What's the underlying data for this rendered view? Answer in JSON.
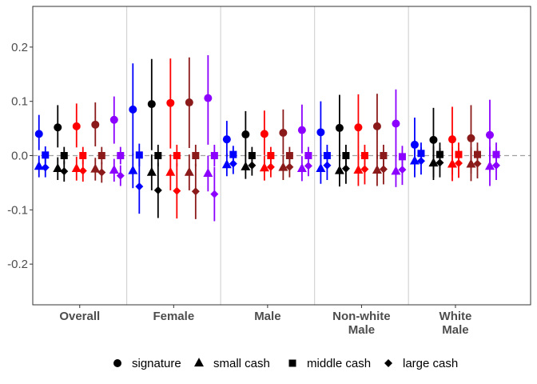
{
  "chart_data": {
    "type": "scatter",
    "subtype": "point-range (estimates with confidence intervals)",
    "title": "",
    "xlabel": "",
    "ylabel": "",
    "ylim": [
      -0.275,
      0.275
    ],
    "yticks": [
      -0.2,
      -0.1,
      0.0,
      0.1,
      0.2
    ],
    "ytick_labels": [
      "-0.2",
      "-0.1",
      "0.0",
      "0.1",
      "0.2"
    ],
    "reference_line": {
      "y": 0,
      "style": "dashed"
    },
    "grid": false,
    "group_separators": true,
    "legend_position": "bottom",
    "groups": [
      {
        "label": "Overall"
      },
      {
        "label": "Female"
      },
      {
        "label": "Male"
      },
      {
        "label": "Non-white\nMale"
      },
      {
        "label": "White\nMale"
      }
    ],
    "colors": [
      "#0000FF",
      "#000000",
      "#FF0000",
      "#8B1A1A",
      "#8B00FF"
    ],
    "treatments": [
      {
        "name": "signature",
        "shape": "circle"
      },
      {
        "name": "small cash",
        "shape": "triangle"
      },
      {
        "name": "middle cash",
        "shape": "square"
      },
      {
        "name": "large cash",
        "shape": "diamond"
      }
    ],
    "series": [
      {
        "group": 0,
        "color": 0,
        "treatment": 0,
        "estimate": 0.04,
        "ci": [
          0.01,
          0.075
        ]
      },
      {
        "group": 0,
        "color": 0,
        "treatment": 1,
        "estimate": -0.02,
        "ci": [
          -0.04,
          0.0
        ]
      },
      {
        "group": 0,
        "color": 0,
        "treatment": 2,
        "estimate": 0.001,
        "ci": [
          -0.015,
          0.017
        ]
      },
      {
        "group": 0,
        "color": 0,
        "treatment": 3,
        "estimate": -0.022,
        "ci": [
          -0.04,
          -0.004
        ]
      },
      {
        "group": 0,
        "color": 1,
        "treatment": 0,
        "estimate": 0.052,
        "ci": [
          0.015,
          0.093
        ]
      },
      {
        "group": 0,
        "color": 1,
        "treatment": 1,
        "estimate": -0.024,
        "ci": [
          -0.045,
          -0.003
        ]
      },
      {
        "group": 0,
        "color": 1,
        "treatment": 2,
        "estimate": 0.0,
        "ci": [
          -0.016,
          0.016
        ]
      },
      {
        "group": 0,
        "color": 1,
        "treatment": 3,
        "estimate": -0.029,
        "ci": [
          -0.048,
          -0.01
        ]
      },
      {
        "group": 0,
        "color": 2,
        "treatment": 0,
        "estimate": 0.054,
        "ci": [
          0.015,
          0.096
        ]
      },
      {
        "group": 0,
        "color": 2,
        "treatment": 1,
        "estimate": -0.024,
        "ci": [
          -0.046,
          -0.002
        ]
      },
      {
        "group": 0,
        "color": 2,
        "treatment": 2,
        "estimate": 0.0,
        "ci": [
          -0.016,
          0.016
        ]
      },
      {
        "group": 0,
        "color": 2,
        "treatment": 3,
        "estimate": -0.028,
        "ci": [
          -0.048,
          -0.008
        ]
      },
      {
        "group": 0,
        "color": 3,
        "treatment": 0,
        "estimate": 0.057,
        "ci": [
          0.017,
          0.098
        ]
      },
      {
        "group": 0,
        "color": 3,
        "treatment": 1,
        "estimate": -0.025,
        "ci": [
          -0.046,
          -0.004
        ]
      },
      {
        "group": 0,
        "color": 3,
        "treatment": 2,
        "estimate": 0.0,
        "ci": [
          -0.016,
          0.016
        ]
      },
      {
        "group": 0,
        "color": 3,
        "treatment": 3,
        "estimate": -0.031,
        "ci": [
          -0.05,
          -0.012
        ]
      },
      {
        "group": 0,
        "color": 4,
        "treatment": 0,
        "estimate": 0.066,
        "ci": [
          0.022,
          0.109
        ]
      },
      {
        "group": 0,
        "color": 4,
        "treatment": 1,
        "estimate": -0.027,
        "ci": [
          -0.048,
          -0.006
        ]
      },
      {
        "group": 0,
        "color": 4,
        "treatment": 2,
        "estimate": 0.0,
        "ci": [
          -0.016,
          0.016
        ]
      },
      {
        "group": 0,
        "color": 4,
        "treatment": 3,
        "estimate": -0.037,
        "ci": [
          -0.056,
          -0.018
        ]
      },
      {
        "group": 1,
        "color": 0,
        "treatment": 0,
        "estimate": 0.085,
        "ci": [
          0.0,
          0.17
        ]
      },
      {
        "group": 1,
        "color": 0,
        "treatment": 1,
        "estimate": -0.028,
        "ci": [
          -0.06,
          0.004
        ]
      },
      {
        "group": 1,
        "color": 0,
        "treatment": 2,
        "estimate": 0.001,
        "ci": [
          -0.02,
          0.022
        ]
      },
      {
        "group": 1,
        "color": 0,
        "treatment": 3,
        "estimate": -0.057,
        "ci": [
          -0.107,
          -0.007
        ]
      },
      {
        "group": 1,
        "color": 1,
        "treatment": 0,
        "estimate": 0.095,
        "ci": [
          0.01,
          0.178
        ]
      },
      {
        "group": 1,
        "color": 1,
        "treatment": 1,
        "estimate": -0.031,
        "ci": [
          -0.064,
          0.002
        ]
      },
      {
        "group": 1,
        "color": 1,
        "treatment": 2,
        "estimate": 0.0,
        "ci": [
          -0.02,
          0.02
        ]
      },
      {
        "group": 1,
        "color": 1,
        "treatment": 3,
        "estimate": -0.064,
        "ci": [
          -0.115,
          -0.013
        ]
      },
      {
        "group": 1,
        "color": 2,
        "treatment": 0,
        "estimate": 0.097,
        "ci": [
          0.013,
          0.179
        ]
      },
      {
        "group": 1,
        "color": 2,
        "treatment": 1,
        "estimate": -0.031,
        "ci": [
          -0.064,
          0.002
        ]
      },
      {
        "group": 1,
        "color": 2,
        "treatment": 2,
        "estimate": 0.0,
        "ci": [
          -0.02,
          0.02
        ]
      },
      {
        "group": 1,
        "color": 2,
        "treatment": 3,
        "estimate": -0.065,
        "ci": [
          -0.116,
          -0.014
        ]
      },
      {
        "group": 1,
        "color": 3,
        "treatment": 0,
        "estimate": 0.098,
        "ci": [
          0.014,
          0.181
        ]
      },
      {
        "group": 1,
        "color": 3,
        "treatment": 1,
        "estimate": -0.031,
        "ci": [
          -0.064,
          0.002
        ]
      },
      {
        "group": 1,
        "color": 3,
        "treatment": 2,
        "estimate": 0.0,
        "ci": [
          -0.02,
          0.02
        ]
      },
      {
        "group": 1,
        "color": 3,
        "treatment": 3,
        "estimate": -0.066,
        "ci": [
          -0.117,
          -0.015
        ]
      },
      {
        "group": 1,
        "color": 4,
        "treatment": 0,
        "estimate": 0.106,
        "ci": [
          0.02,
          0.185
        ]
      },
      {
        "group": 1,
        "color": 4,
        "treatment": 1,
        "estimate": -0.033,
        "ci": [
          -0.066,
          0.0
        ]
      },
      {
        "group": 1,
        "color": 4,
        "treatment": 2,
        "estimate": 0.0,
        "ci": [
          -0.02,
          0.02
        ]
      },
      {
        "group": 1,
        "color": 4,
        "treatment": 3,
        "estimate": -0.071,
        "ci": [
          -0.121,
          -0.021
        ]
      },
      {
        "group": 2,
        "color": 0,
        "treatment": 0,
        "estimate": 0.03,
        "ci": [
          -0.002,
          0.064
        ]
      },
      {
        "group": 2,
        "color": 0,
        "treatment": 1,
        "estimate": -0.017,
        "ci": [
          -0.038,
          0.004
        ]
      },
      {
        "group": 2,
        "color": 0,
        "treatment": 2,
        "estimate": 0.002,
        "ci": [
          -0.014,
          0.018
        ]
      },
      {
        "group": 2,
        "color": 0,
        "treatment": 3,
        "estimate": -0.015,
        "ci": [
          -0.034,
          0.004
        ]
      },
      {
        "group": 2,
        "color": 1,
        "treatment": 0,
        "estimate": 0.039,
        "ci": [
          0.0,
          0.082
        ]
      },
      {
        "group": 2,
        "color": 1,
        "treatment": 1,
        "estimate": -0.021,
        "ci": [
          -0.043,
          0.001
        ]
      },
      {
        "group": 2,
        "color": 1,
        "treatment": 2,
        "estimate": 0.0,
        "ci": [
          -0.016,
          0.016
        ]
      },
      {
        "group": 2,
        "color": 1,
        "treatment": 3,
        "estimate": -0.018,
        "ci": [
          -0.037,
          0.001
        ]
      },
      {
        "group": 2,
        "color": 2,
        "treatment": 0,
        "estimate": 0.04,
        "ci": [
          0.001,
          0.083
        ]
      },
      {
        "group": 2,
        "color": 2,
        "treatment": 1,
        "estimate": -0.023,
        "ci": [
          -0.046,
          0.0
        ]
      },
      {
        "group": 2,
        "color": 2,
        "treatment": 2,
        "estimate": 0.0,
        "ci": [
          -0.016,
          0.016
        ]
      },
      {
        "group": 2,
        "color": 2,
        "treatment": 3,
        "estimate": -0.021,
        "ci": [
          -0.04,
          -0.002
        ]
      },
      {
        "group": 2,
        "color": 3,
        "treatment": 0,
        "estimate": 0.042,
        "ci": [
          0.002,
          0.085
        ]
      },
      {
        "group": 2,
        "color": 3,
        "treatment": 1,
        "estimate": -0.022,
        "ci": [
          -0.045,
          0.001
        ]
      },
      {
        "group": 2,
        "color": 3,
        "treatment": 2,
        "estimate": 0.0,
        "ci": [
          -0.016,
          0.016
        ]
      },
      {
        "group": 2,
        "color": 3,
        "treatment": 3,
        "estimate": -0.021,
        "ci": [
          -0.04,
          -0.002
        ]
      },
      {
        "group": 2,
        "color": 4,
        "treatment": 0,
        "estimate": 0.047,
        "ci": [
          0.004,
          0.094
        ]
      },
      {
        "group": 2,
        "color": 4,
        "treatment": 1,
        "estimate": -0.024,
        "ci": [
          -0.047,
          -0.001
        ]
      },
      {
        "group": 2,
        "color": 4,
        "treatment": 2,
        "estimate": 0.0,
        "ci": [
          -0.016,
          0.016
        ]
      },
      {
        "group": 2,
        "color": 4,
        "treatment": 3,
        "estimate": -0.019,
        "ci": [
          -0.038,
          0.0
        ]
      },
      {
        "group": 3,
        "color": 0,
        "treatment": 0,
        "estimate": 0.043,
        "ci": [
          -0.015,
          0.1
        ]
      },
      {
        "group": 3,
        "color": 0,
        "treatment": 1,
        "estimate": -0.024,
        "ci": [
          -0.052,
          0.004
        ]
      },
      {
        "group": 3,
        "color": 0,
        "treatment": 2,
        "estimate": 0.0,
        "ci": [
          -0.02,
          0.02
        ]
      },
      {
        "group": 3,
        "color": 0,
        "treatment": 3,
        "estimate": -0.018,
        "ci": [
          -0.045,
          0.009
        ]
      },
      {
        "group": 3,
        "color": 1,
        "treatment": 0,
        "estimate": 0.051,
        "ci": [
          -0.01,
          0.112
        ]
      },
      {
        "group": 3,
        "color": 1,
        "treatment": 1,
        "estimate": -0.028,
        "ci": [
          -0.057,
          0.001
        ]
      },
      {
        "group": 3,
        "color": 1,
        "treatment": 2,
        "estimate": 0.0,
        "ci": [
          -0.02,
          0.02
        ]
      },
      {
        "group": 3,
        "color": 1,
        "treatment": 3,
        "estimate": -0.024,
        "ci": [
          -0.052,
          0.004
        ]
      },
      {
        "group": 3,
        "color": 2,
        "treatment": 0,
        "estimate": 0.052,
        "ci": [
          -0.008,
          0.113
        ]
      },
      {
        "group": 3,
        "color": 2,
        "treatment": 1,
        "estimate": -0.027,
        "ci": [
          -0.056,
          0.002
        ]
      },
      {
        "group": 3,
        "color": 2,
        "treatment": 2,
        "estimate": 0.0,
        "ci": [
          -0.02,
          0.02
        ]
      },
      {
        "group": 3,
        "color": 2,
        "treatment": 3,
        "estimate": -0.025,
        "ci": [
          -0.053,
          0.003
        ]
      },
      {
        "group": 3,
        "color": 3,
        "treatment": 0,
        "estimate": 0.054,
        "ci": [
          -0.006,
          0.114
        ]
      },
      {
        "group": 3,
        "color": 3,
        "treatment": 1,
        "estimate": -0.027,
        "ci": [
          -0.056,
          0.002
        ]
      },
      {
        "group": 3,
        "color": 3,
        "treatment": 2,
        "estimate": 0.0,
        "ci": [
          -0.02,
          0.02
        ]
      },
      {
        "group": 3,
        "color": 3,
        "treatment": 3,
        "estimate": -0.025,
        "ci": [
          -0.053,
          0.003
        ]
      },
      {
        "group": 3,
        "color": 4,
        "treatment": 0,
        "estimate": 0.059,
        "ci": [
          -0.004,
          0.122
        ]
      },
      {
        "group": 3,
        "color": 4,
        "treatment": 1,
        "estimate": -0.029,
        "ci": [
          -0.058,
          0.0
        ]
      },
      {
        "group": 3,
        "color": 4,
        "treatment": 2,
        "estimate": -0.002,
        "ci": [
          -0.022,
          0.018
        ]
      },
      {
        "group": 3,
        "color": 4,
        "treatment": 3,
        "estimate": -0.026,
        "ci": [
          -0.054,
          0.002
        ]
      },
      {
        "group": 4,
        "color": 0,
        "treatment": 0,
        "estimate": 0.02,
        "ci": [
          -0.025,
          0.07
        ]
      },
      {
        "group": 4,
        "color": 0,
        "treatment": 1,
        "estimate": -0.01,
        "ci": [
          -0.04,
          0.02
        ]
      },
      {
        "group": 4,
        "color": 0,
        "treatment": 2,
        "estimate": 0.004,
        "ci": [
          -0.016,
          0.024
        ]
      },
      {
        "group": 4,
        "color": 0,
        "treatment": 3,
        "estimate": -0.01,
        "ci": [
          -0.035,
          0.015
        ]
      },
      {
        "group": 4,
        "color": 1,
        "treatment": 0,
        "estimate": 0.029,
        "ci": [
          -0.04,
          0.088
        ]
      },
      {
        "group": 4,
        "color": 1,
        "treatment": 1,
        "estimate": -0.014,
        "ci": [
          -0.045,
          0.017
        ]
      },
      {
        "group": 4,
        "color": 1,
        "treatment": 2,
        "estimate": 0.002,
        "ci": [
          -0.02,
          0.024
        ]
      },
      {
        "group": 4,
        "color": 1,
        "treatment": 3,
        "estimate": -0.013,
        "ci": [
          -0.04,
          0.014
        ]
      },
      {
        "group": 4,
        "color": 2,
        "treatment": 0,
        "estimate": 0.03,
        "ci": [
          -0.035,
          0.09
        ]
      },
      {
        "group": 4,
        "color": 2,
        "treatment": 1,
        "estimate": -0.016,
        "ci": [
          -0.047,
          0.015
        ]
      },
      {
        "group": 4,
        "color": 2,
        "treatment": 2,
        "estimate": 0.002,
        "ci": [
          -0.02,
          0.024
        ]
      },
      {
        "group": 4,
        "color": 2,
        "treatment": 3,
        "estimate": -0.014,
        "ci": [
          -0.041,
          0.013
        ]
      },
      {
        "group": 4,
        "color": 3,
        "treatment": 0,
        "estimate": 0.032,
        "ci": [
          -0.033,
          0.093
        ]
      },
      {
        "group": 4,
        "color": 3,
        "treatment": 1,
        "estimate": -0.016,
        "ci": [
          -0.047,
          0.015
        ]
      },
      {
        "group": 4,
        "color": 3,
        "treatment": 2,
        "estimate": 0.002,
        "ci": [
          -0.02,
          0.024
        ]
      },
      {
        "group": 4,
        "color": 3,
        "treatment": 3,
        "estimate": -0.015,
        "ci": [
          -0.042,
          0.012
        ]
      },
      {
        "group": 4,
        "color": 4,
        "treatment": 0,
        "estimate": 0.038,
        "ci": [
          -0.03,
          0.103
        ]
      },
      {
        "group": 4,
        "color": 4,
        "treatment": 1,
        "estimate": -0.02,
        "ci": [
          -0.056,
          0.016
        ]
      },
      {
        "group": 4,
        "color": 4,
        "treatment": 2,
        "estimate": 0.002,
        "ci": [
          -0.02,
          0.024
        ]
      },
      {
        "group": 4,
        "color": 4,
        "treatment": 3,
        "estimate": -0.018,
        "ci": [
          -0.045,
          0.009
        ]
      }
    ]
  }
}
